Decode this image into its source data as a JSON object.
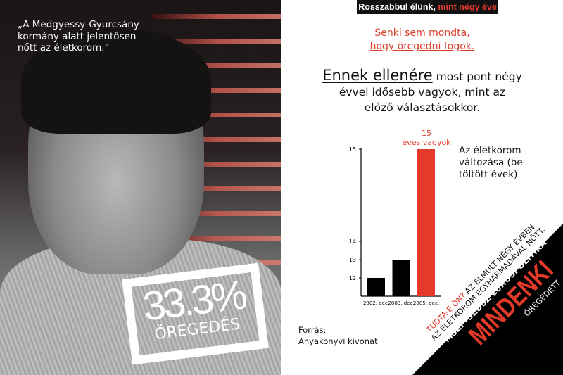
{
  "left_panel": {
    "quote": "„A Medgyessy-Gyurcsány kormány alatt jelentősen nőtt az életkorom.”",
    "badge_value": "33.3%",
    "badge_label": "ÖREGEDÉS"
  },
  "top_bar": {
    "white": "Rosszabbul élünk,",
    "red": "mint négy éve"
  },
  "subtitle": [
    "Senki sem mondta,",
    "hogy öregedni fogok."
  ],
  "headline": {
    "emphasis": "Ennek ellenére",
    "rest1": " most pont négy",
    "rest2": "évvel idősebb vagyok, mint az",
    "rest3": "előző választásokkor."
  },
  "legend": "Az életkorom változása (be-töltött évek)",
  "source": {
    "label": "Forrás:",
    "value": "Anyakönyvi kivonat"
  },
  "corner": {
    "line1_red": "TUDTA-E ÖN?",
    "line1_black": " AZ ELMÚLT NÉGY ÉVBEN",
    "line2": "AZ ÉLETKOROM EGYHARMADÁVAL NŐTT.",
    "line3": "MSZP–SZDSZ LUXUSPOLITIKA",
    "line4": "MINDENKI",
    "line5": "ÖREGEDETT"
  },
  "colors": {
    "accent": "#e43a2a",
    "bar": "#000000"
  },
  "chart_data": {
    "type": "bar",
    "categories": [
      "2002. dec.",
      "2003. dec.",
      "2005. dec."
    ],
    "values": [
      12,
      13,
      15
    ],
    "highlight_index": 2,
    "yticks": [
      "12",
      "13",
      "14",
      "15"
    ],
    "annotation": [
      "15",
      "éves vagyok"
    ],
    "axis": "broken (non-linear) y scale"
  }
}
